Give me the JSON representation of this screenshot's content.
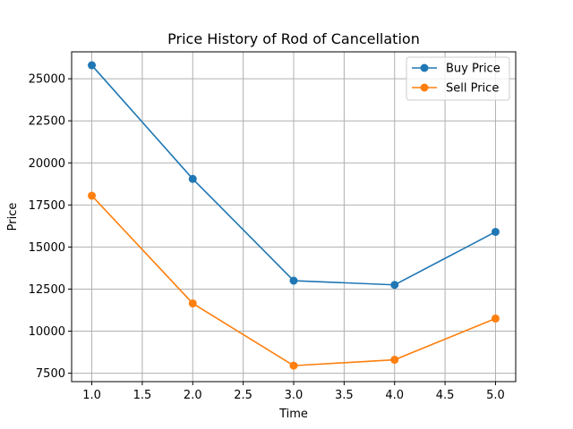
{
  "chart_data": {
    "type": "line",
    "title": "Price History of Rod of Cancellation",
    "xlabel": "Time",
    "ylabel": "Price",
    "x": [
      1.0,
      2.0,
      3.0,
      4.0,
      5.0
    ],
    "xlim": [
      0.8,
      5.2
    ],
    "ylim": [
      7000,
      26600
    ],
    "xticks": [
      "1.0",
      "1.5",
      "2.0",
      "2.5",
      "3.0",
      "3.5",
      "4.0",
      "4.5",
      "5.0"
    ],
    "yticks": [
      "7500",
      "10000",
      "12500",
      "15000",
      "17500",
      "20000",
      "22500",
      "25000"
    ],
    "grid": true,
    "legend_position": "upper-right",
    "series": [
      {
        "name": "Buy Price",
        "color": "#1f77b4",
        "marker": "circle",
        "values": [
          25800,
          19050,
          13000,
          12750,
          15900
        ]
      },
      {
        "name": "Sell Price",
        "color": "#ff7f0e",
        "marker": "circle",
        "values": [
          18050,
          11650,
          7950,
          8300,
          10750
        ]
      }
    ]
  }
}
